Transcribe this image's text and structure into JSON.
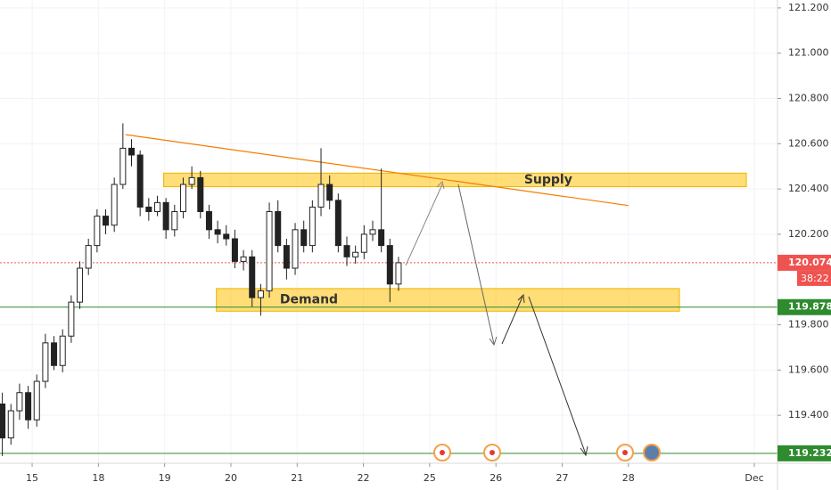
{
  "chart_data": {
    "type": "candlestick",
    "xlim": [
      -0.485,
      11.25
    ],
    "ylim": [
      119.188,
      121.235
    ],
    "xticks": [
      {
        "value": 0,
        "label": "15"
      },
      {
        "value": 1,
        "label": "18"
      },
      {
        "value": 2,
        "label": "19"
      },
      {
        "value": 3,
        "label": "20"
      },
      {
        "value": 4,
        "label": "21"
      },
      {
        "value": 5,
        "label": "22"
      },
      {
        "value": 6,
        "label": "25"
      },
      {
        "value": 7,
        "label": "26"
      },
      {
        "value": 8,
        "label": "27"
      },
      {
        "value": 9,
        "label": "28"
      },
      {
        "value": 10.9,
        "label": "Dec"
      }
    ],
    "yticks": [
      {
        "value": 119.4,
        "label": "119.400"
      },
      {
        "value": 119.6,
        "label": "119.600"
      },
      {
        "value": 119.8,
        "label": "119.800"
      },
      {
        "value": 120.2,
        "label": "120.200"
      },
      {
        "value": 120.4,
        "label": "120.400"
      },
      {
        "value": 120.6,
        "label": "120.600"
      },
      {
        "value": 120.8,
        "label": "120.800"
      },
      {
        "value": 121.0,
        "label": "121.000"
      },
      {
        "value": 121.2,
        "label": "121.200"
      }
    ],
    "candles": {
      "x": [
        -0.45,
        -0.32,
        -0.19,
        -0.06,
        0.07,
        0.2,
        0.33,
        0.46,
        0.59,
        0.72,
        0.85,
        0.98,
        1.11,
        1.24,
        1.37,
        1.5,
        1.63,
        1.76,
        1.89,
        2.02,
        2.15,
        2.28,
        2.41,
        2.54,
        2.67,
        2.8,
        2.93,
        3.06,
        3.19,
        3.32,
        3.45,
        3.58,
        3.71,
        3.84,
        3.97,
        4.1,
        4.23,
        4.36,
        4.49,
        4.62,
        4.75,
        4.88,
        5.01,
        5.14,
        5.27,
        5.4,
        5.53
      ],
      "open": [
        119.45,
        119.3,
        119.42,
        119.5,
        119.38,
        119.55,
        119.72,
        119.62,
        119.75,
        119.9,
        120.05,
        120.15,
        120.28,
        120.24,
        120.42,
        120.58,
        120.55,
        120.32,
        120.3,
        120.34,
        120.22,
        120.3,
        120.42,
        120.45,
        120.3,
        120.22,
        120.2,
        120.18,
        120.08,
        120.1,
        119.92,
        119.95,
        120.3,
        120.15,
        120.05,
        120.22,
        120.15,
        120.32,
        120.42,
        120.35,
        120.15,
        120.1,
        120.12,
        120.2,
        120.22,
        120.15,
        119.98
      ],
      "high": [
        119.5,
        119.45,
        119.54,
        119.53,
        119.58,
        119.76,
        119.75,
        119.78,
        119.93,
        120.08,
        120.18,
        120.31,
        120.31,
        120.45,
        120.69,
        120.62,
        120.57,
        120.36,
        120.37,
        120.36,
        120.33,
        120.45,
        120.5,
        120.48,
        120.33,
        120.26,
        120.24,
        120.22,
        120.13,
        120.13,
        119.98,
        120.34,
        120.35,
        120.18,
        120.25,
        120.26,
        120.35,
        120.58,
        120.46,
        120.38,
        120.19,
        120.15,
        120.24,
        120.26,
        120.49,
        120.18,
        120.1
      ],
      "low": [
        119.22,
        119.27,
        119.38,
        119.34,
        119.35,
        119.52,
        119.6,
        119.59,
        119.72,
        119.87,
        120.02,
        120.12,
        120.2,
        120.21,
        120.4,
        120.5,
        120.28,
        120.26,
        120.28,
        120.18,
        120.19,
        120.27,
        120.4,
        120.27,
        120.18,
        120.16,
        120.15,
        120.05,
        120.04,
        119.88,
        119.84,
        119.92,
        120.12,
        120.0,
        120.02,
        120.12,
        120.12,
        120.28,
        120.31,
        120.12,
        120.06,
        120.07,
        120.09,
        120.17,
        120.12,
        119.9,
        119.95
      ],
      "close": [
        119.3,
        119.42,
        119.5,
        119.38,
        119.55,
        119.72,
        119.62,
        119.75,
        119.9,
        120.05,
        120.15,
        120.28,
        120.24,
        120.42,
        120.58,
        120.55,
        120.32,
        120.3,
        120.34,
        120.22,
        120.3,
        120.42,
        120.45,
        120.3,
        120.22,
        120.2,
        120.18,
        120.08,
        120.1,
        119.92,
        119.95,
        120.3,
        120.15,
        120.05,
        120.22,
        120.15,
        120.32,
        120.42,
        120.35,
        120.15,
        120.1,
        120.12,
        120.2,
        120.22,
        120.15,
        119.98,
        120.074
      ]
    },
    "supply": {
      "label": "Supply",
      "x": [
        1.985,
        10.78
      ],
      "y": [
        120.41,
        120.47
      ]
    },
    "demand": {
      "label": "Demand",
      "x": [
        2.78,
        9.77
      ],
      "y": [
        119.86,
        119.96
      ]
    },
    "trendline": {
      "x": [
        1.41,
        9.0
      ],
      "y": [
        120.64,
        120.327
      ]
    },
    "levels": [
      {
        "value": 120.074,
        "color": "#ef5350",
        "countdown": "38:22"
      },
      {
        "value": 119.878,
        "color": "#2e8b2e"
      },
      {
        "value": 119.232,
        "color": "#2e8b2e"
      }
    ]
  }
}
